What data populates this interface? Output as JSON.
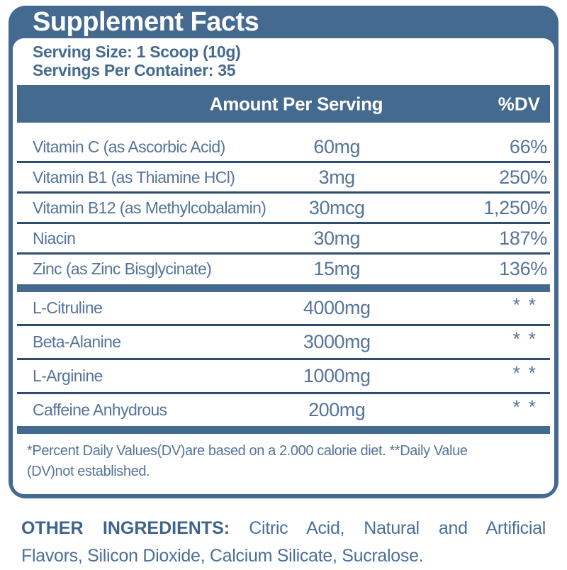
{
  "title": "Supplement Facts",
  "serving": {
    "size": "Serving Size: 1 Scoop (10g)",
    "per_container": "Servings Per Container: 35"
  },
  "table": {
    "header": {
      "amount": "Amount Per Serving",
      "dv": "%DV"
    },
    "vitamin_rows": [
      {
        "name": "Vitamin C (as Ascorbic Acid)",
        "amount": "60mg",
        "dv": "66%"
      },
      {
        "name": "Vitamin B1 (as Thiamine HCl)",
        "amount": "3mg",
        "dv": "250%"
      },
      {
        "name": "Vitamin B12 (as Methylcobalamin)",
        "amount": "30mcg",
        "dv": "1,250%"
      },
      {
        "name": "Niacin",
        "amount": "30mg",
        "dv": "187%"
      },
      {
        "name": "Zinc (as Zinc Bisglycinate)",
        "amount": "15mg",
        "dv": "136%"
      }
    ],
    "blend_rows": [
      {
        "name": "L-Citruline",
        "amount": "4000mg",
        "dv": "* *"
      },
      {
        "name": "Beta-Alanine",
        "amount": "3000mg",
        "dv": "* *"
      },
      {
        "name": "L-Arginine",
        "amount": "1000mg",
        "dv": "* *"
      },
      {
        "name": "Caffeine Anhydrous",
        "amount": "200mg",
        "dv": "* *"
      }
    ]
  },
  "footnote": {
    "line1": "*Percent Daily Values(DV)are based on a 2.000 calorie diet. **Daily Value",
    "line2": "(DV)not established."
  },
  "other_ingredients": {
    "label": "OTHER INGREDIENTS:",
    "line1_rest": "Citric Acid, Natural and Artificial",
    "line2": "Flavors, Silicon Dioxide, Calcium Silicate, Sucralose."
  },
  "colors": {
    "band": "#456a90",
    "body_text": "#54749a",
    "divider_line": "#2e4d70",
    "title_text": "#ffffff"
  }
}
